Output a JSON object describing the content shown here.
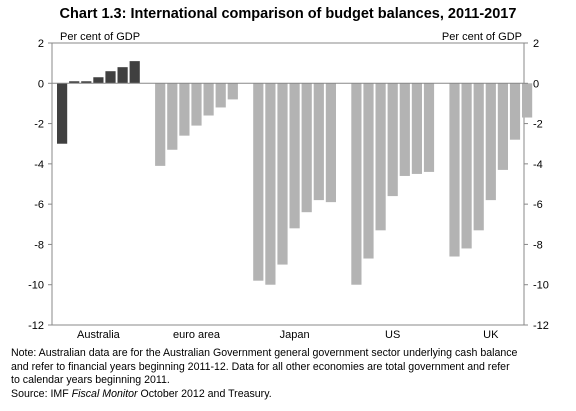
{
  "chart_data": {
    "type": "bar",
    "title": "Chart 1.3: International comparison of budget balances, 2011-2017",
    "ylabel_left": "Per cent of GDP",
    "ylabel_right": "Per cent of GDP",
    "ylim": [
      -12,
      2
    ],
    "yticks": [
      2,
      0,
      -2,
      -4,
      -6,
      -8,
      -10,
      -12
    ],
    "ytick_labels": [
      "2",
      "0",
      "-2",
      "-4",
      "-6",
      "-8",
      "-10",
      "-12"
    ],
    "grid": false,
    "colors": {
      "Australia": "#404040",
      "other": "#b3b3b3",
      "axis": "#888888"
    },
    "groups": [
      {
        "name": "Australia",
        "values": [
          -3.0,
          0.1,
          0.1,
          0.3,
          0.6,
          0.8,
          1.1
        ]
      },
      {
        "name": "euro area",
        "values": [
          -4.1,
          -3.3,
          -2.6,
          -2.1,
          -1.6,
          -1.2,
          -0.8
        ]
      },
      {
        "name": "Japan",
        "values": [
          -9.8,
          -10.0,
          -9.0,
          -7.2,
          -6.4,
          -5.8,
          -5.9
        ]
      },
      {
        "name": "US",
        "values": [
          -10.0,
          -8.7,
          -7.3,
          -5.6,
          -4.6,
          -4.5,
          -4.4
        ]
      },
      {
        "name": "UK",
        "values": [
          -8.6,
          -8.2,
          -7.3,
          -5.8,
          -4.3,
          -2.8,
          -1.7
        ]
      }
    ]
  },
  "note": {
    "line1": "Note: Australian data are for the Australian Government general government sector underlying cash balance",
    "line2": "and refer to financial years beginning 2011-12. Data for all other economies are total government and refer",
    "line3": "to calendar years beginning 2011.",
    "source_prefix": "Source: IMF ",
    "source_italic": "Fiscal Monitor",
    "source_suffix": " October 2012 and Treasury."
  }
}
